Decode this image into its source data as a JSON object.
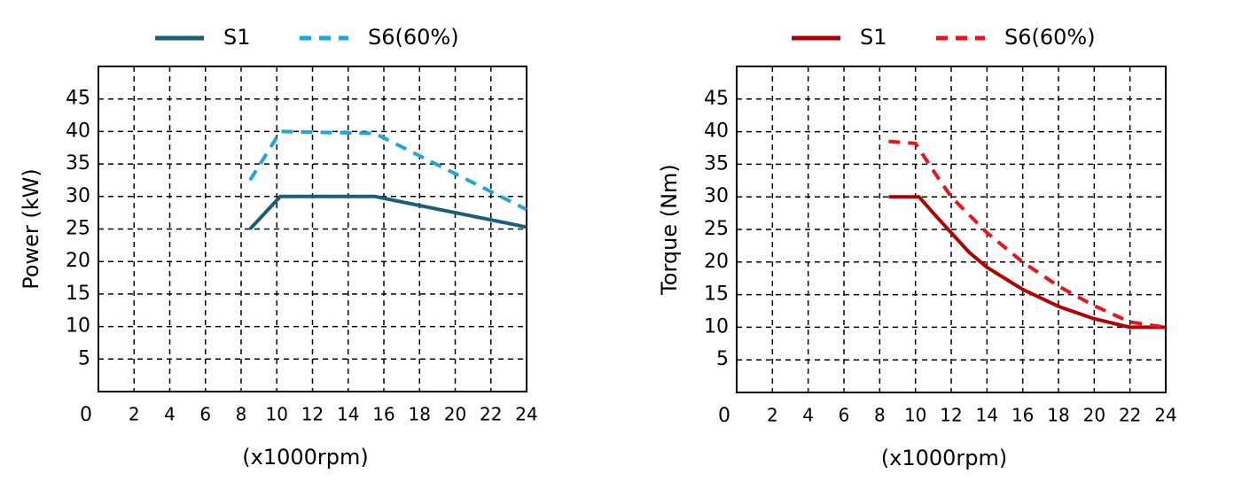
{
  "chart_data": [
    {
      "type": "line",
      "y_label": "Power (kW)",
      "x_label": "(x1000rpm)",
      "xlim": [
        0,
        24
      ],
      "ylim": [
        0,
        50
      ],
      "xticks": [
        0,
        2,
        4,
        6,
        8,
        10,
        12,
        14,
        16,
        18,
        20,
        22,
        24
      ],
      "yticks": [
        5,
        10,
        15,
        20,
        25,
        30,
        35,
        40,
        45
      ],
      "grid": true,
      "series": [
        {
          "name": "S1",
          "color": "#1a5e7a",
          "dash": false,
          "x": [
            8.5,
            10.2,
            15.5,
            24
          ],
          "values": [
            25,
            30,
            30,
            25.3
          ]
        },
        {
          "name": "S6(60%)",
          "color": "#1ba6dd",
          "dash": true,
          "x": [
            8.5,
            10.2,
            15.5,
            24
          ],
          "values": [
            32.5,
            40,
            39.7,
            28
          ]
        }
      ]
    },
    {
      "type": "line",
      "y_label": "Torque  (Nm)",
      "x_label": "(x1000rpm)",
      "xlim": [
        0,
        24
      ],
      "ylim": [
        0,
        50
      ],
      "xticks": [
        0,
        2,
        4,
        6,
        8,
        10,
        12,
        14,
        16,
        18,
        20,
        22,
        24
      ],
      "yticks": [
        5,
        10,
        15,
        20,
        25,
        30,
        35,
        40,
        45
      ],
      "grid": true,
      "series": [
        {
          "name": "S1",
          "color": "#b00000",
          "dash": false,
          "x": [
            8.5,
            10.2,
            11,
            12,
            13,
            14,
            16,
            18,
            20,
            22,
            24
          ],
          "values": [
            30,
            30,
            27.5,
            24.5,
            21.5,
            19.2,
            15.8,
            13.2,
            11.3,
            10,
            10
          ]
        },
        {
          "name": "S6(60%)",
          "color": "#e8141c",
          "dash": true,
          "x": [
            8.5,
            10,
            11,
            12,
            14,
            16,
            18,
            20,
            22,
            24
          ],
          "values": [
            38.5,
            38.2,
            34,
            30,
            24.5,
            20,
            16.3,
            13.3,
            10.8,
            10
          ]
        }
      ]
    }
  ]
}
